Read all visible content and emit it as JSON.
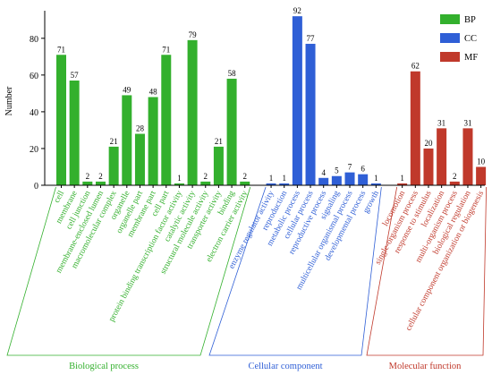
{
  "chart_data": {
    "type": "bar",
    "title": "",
    "xlabel": "",
    "ylabel": "Number",
    "ylim": [
      0,
      95
    ],
    "yticks": [
      0,
      20,
      40,
      60,
      80
    ],
    "grid": false,
    "legend_position": "top-right",
    "series": [
      {
        "name": "BP",
        "color": "#33b02d",
        "group_label": "Biological process",
        "categories": [
          "cell",
          "membrane",
          "cell junction",
          "membrane-enclosed lumen",
          "macromolecular complex",
          "organelle",
          "organelle part",
          "membrane part",
          "cell part",
          "protein binding transcription factor activity",
          "catalytic activity",
          "structural molecule activity",
          "transporter activity",
          "binding",
          "electron carrier activity"
        ],
        "values": [
          71,
          57,
          2,
          2,
          21,
          49,
          28,
          48,
          71,
          1,
          79,
          2,
          21,
          58,
          2
        ]
      },
      {
        "name": "CC",
        "color": "#2f5fd6",
        "group_label": "Cellular component",
        "categories": [
          "enzyme regulator activity",
          "reproduction",
          "metabolic process",
          "cellular process",
          "reproductive process",
          "signaling",
          "multicellular organismal process",
          "developmental process",
          "growth"
        ],
        "values": [
          1,
          1,
          92,
          77,
          4,
          5,
          7,
          6,
          1
        ]
      },
      {
        "name": "MF",
        "color": "#c0392b",
        "group_label": "Molecular function",
        "categories": [
          "locomotion",
          "single-organism process",
          "response to stimulus",
          "localization",
          "multi-organism process",
          "biological regulation",
          "cellular component organization or biogenesis"
        ],
        "values": [
          1,
          62,
          20,
          31,
          2,
          31,
          10
        ]
      }
    ]
  }
}
